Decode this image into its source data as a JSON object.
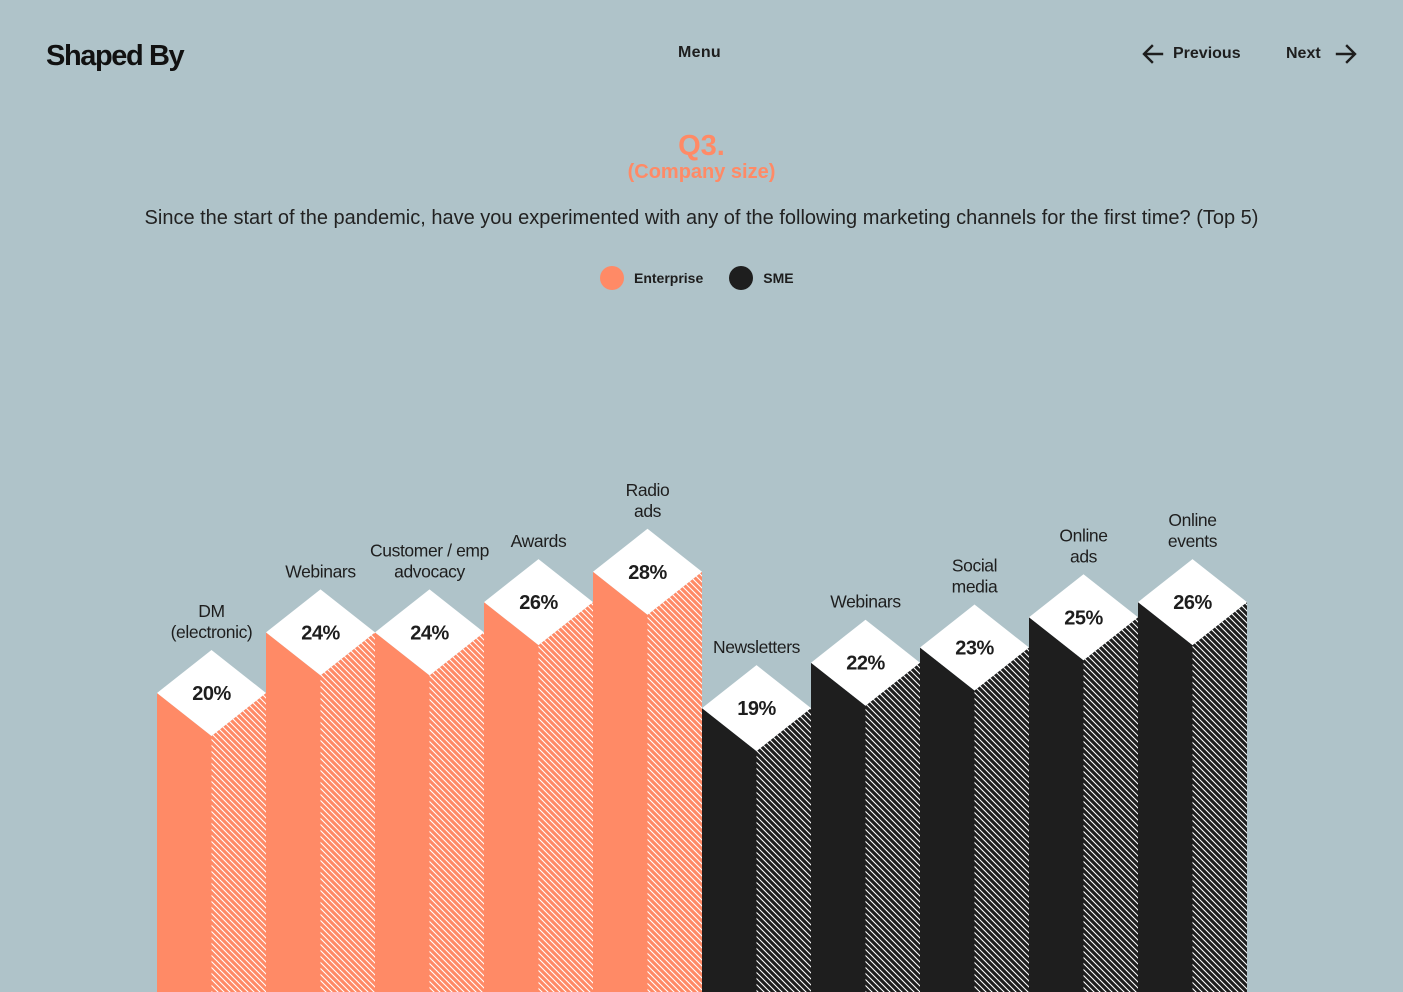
{
  "header": {
    "logo": "Shaped By",
    "menu_label": "Menu",
    "prev_label": "Previous",
    "next_label": "Next",
    "prev_icon": "arrow-left-icon",
    "next_icon": "arrow-right-icon"
  },
  "question": {
    "number": "Q3.",
    "subtitle": "(Company size)",
    "text": "Since the start of the pandemic, have you experimented with any of the following marketing channels for the first time? (Top 5)"
  },
  "colors": {
    "background": "#afc3c9",
    "enterprise": "#ff8a66",
    "sme": "#1e1e1e",
    "top": "#ffffff"
  },
  "legend": [
    {
      "label": "Enterprise",
      "color": "#ff8a66"
    },
    {
      "label": "SME",
      "color": "#1e1e1e"
    }
  ],
  "chart_data": {
    "type": "bar",
    "title": "",
    "xlabel": "",
    "ylabel": "",
    "series": [
      {
        "name": "Enterprise",
        "color": "#ff8a66",
        "points": [
          {
            "label": "DM\n(electronic)",
            "value": 20,
            "display": "20%"
          },
          {
            "label": "Webinars",
            "value": 24,
            "display": "24%"
          },
          {
            "label": "Customer / emp\nadvocacy",
            "value": 24,
            "display": "24%"
          },
          {
            "label": "Awards",
            "value": 26,
            "display": "26%"
          },
          {
            "label": "Radio\nads",
            "value": 28,
            "display": "28%"
          }
        ]
      },
      {
        "name": "SME",
        "color": "#1e1e1e",
        "points": [
          {
            "label": "Newsletters",
            "value": 19,
            "display": "19%"
          },
          {
            "label": "Webinars",
            "value": 22,
            "display": "22%"
          },
          {
            "label": "Social\nmedia",
            "value": 23,
            "display": "23%"
          },
          {
            "label": "Online\nads",
            "value": 25,
            "display": "25%"
          },
          {
            "label": "Online\nevents",
            "value": 26,
            "display": "26%"
          }
        ]
      }
    ]
  }
}
